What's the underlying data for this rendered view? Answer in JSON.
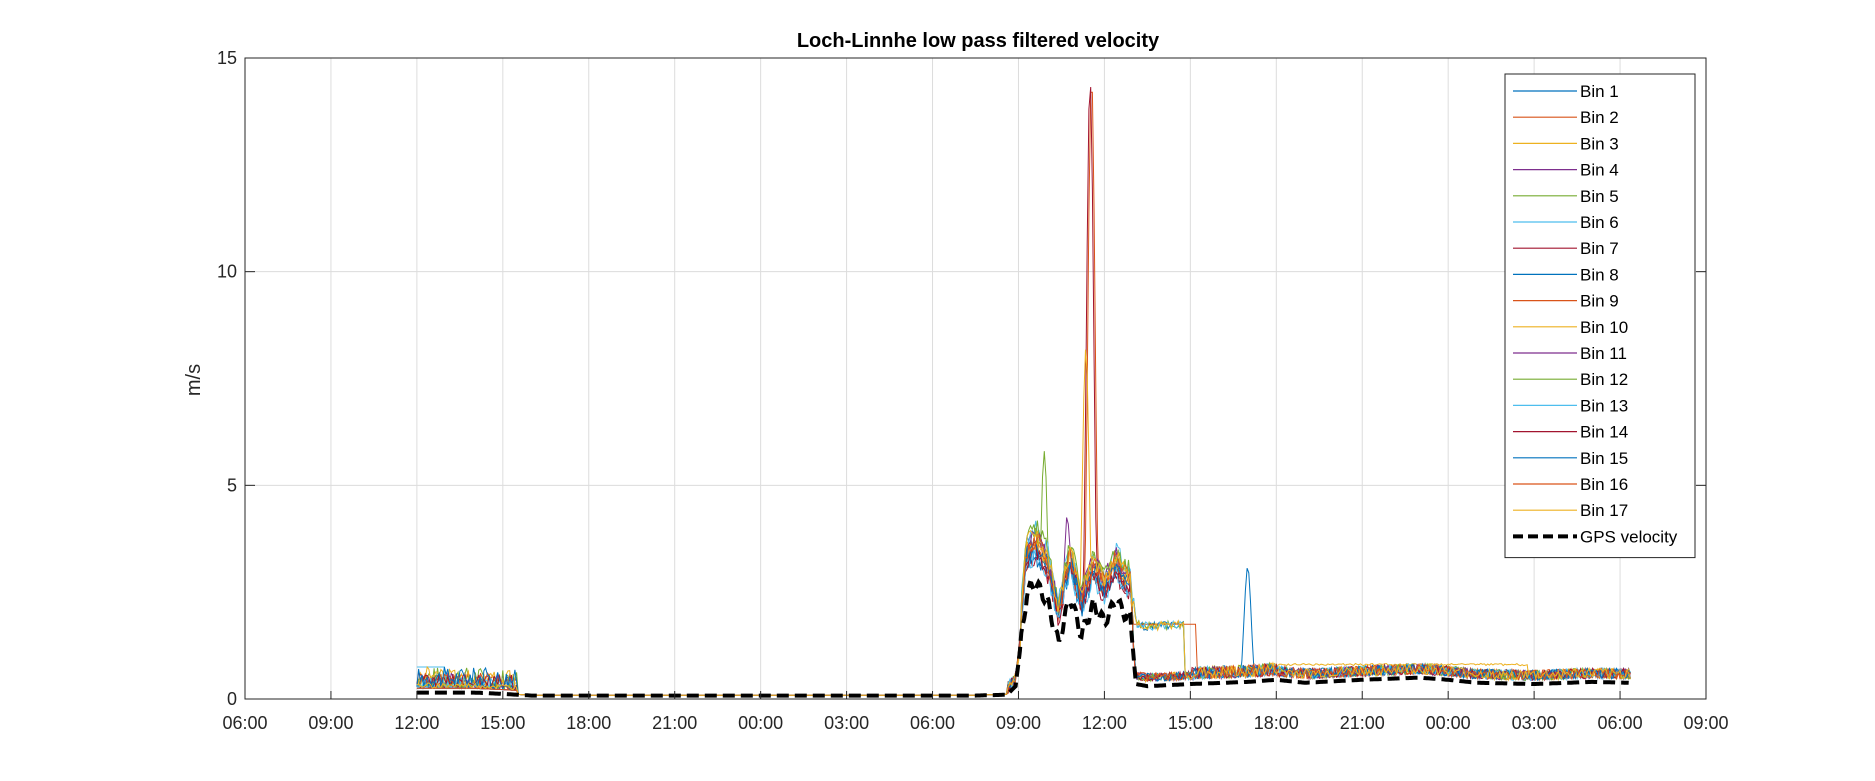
{
  "chart_data": {
    "type": "line",
    "title": "Loch-Linnhe low pass filtered velocity",
    "xlabel": "",
    "ylabel": "m/s",
    "ylim": [
      0,
      15
    ],
    "yticks": [
      0,
      5,
      10,
      15
    ],
    "xlim_hours": [
      0,
      51
    ],
    "xticks": [
      {
        "h": 0,
        "label": "06:00"
      },
      {
        "h": 3,
        "label": "09:00"
      },
      {
        "h": 6,
        "label": "12:00"
      },
      {
        "h": 9,
        "label": "15:00"
      },
      {
        "h": 12,
        "label": "18:00"
      },
      {
        "h": 15,
        "label": "21:00"
      },
      {
        "h": 18,
        "label": "00:00"
      },
      {
        "h": 21,
        "label": "03:00"
      },
      {
        "h": 24,
        "label": "06:00"
      },
      {
        "h": 27,
        "label": "09:00"
      },
      {
        "h": 30,
        "label": "12:00"
      },
      {
        "h": 33,
        "label": "15:00"
      },
      {
        "h": 36,
        "label": "18:00"
      },
      {
        "h": 39,
        "label": "21:00"
      },
      {
        "h": 42,
        "label": "00:00"
      },
      {
        "h": 45,
        "label": "03:00"
      },
      {
        "h": 48,
        "label": "06:00"
      },
      {
        "h": 51,
        "label": "09:00"
      }
    ],
    "grid": true,
    "legend_position": "top-right",
    "series": [
      {
        "name": "Bin 1",
        "color": "#0072BD"
      },
      {
        "name": "Bin 2",
        "color": "#D95319"
      },
      {
        "name": "Bin 3",
        "color": "#EDB120"
      },
      {
        "name": "Bin 4",
        "color": "#7E2F8E"
      },
      {
        "name": "Bin 5",
        "color": "#77AC30"
      },
      {
        "name": "Bin 6",
        "color": "#4DBEEE"
      },
      {
        "name": "Bin 7",
        "color": "#A2142F"
      },
      {
        "name": "Bin 8",
        "color": "#0072BD"
      },
      {
        "name": "Bin 9",
        "color": "#D95319"
      },
      {
        "name": "Bin 10",
        "color": "#EDB120"
      },
      {
        "name": "Bin 11",
        "color": "#7E2F8E"
      },
      {
        "name": "Bin 12",
        "color": "#77AC30"
      },
      {
        "name": "Bin 13",
        "color": "#4DBEEE"
      },
      {
        "name": "Bin 14",
        "color": "#A2142F"
      },
      {
        "name": "Bin 15",
        "color": "#0072BD"
      },
      {
        "name": "Bin 16",
        "color": "#D95319"
      },
      {
        "name": "Bin 17",
        "color": "#EDB120"
      },
      {
        "name": "GPS velocity",
        "color": "#000000",
        "dashed": true,
        "points": [
          [
            6.0,
            0.15
          ],
          [
            7.0,
            0.15
          ],
          [
            8.0,
            0.15
          ],
          [
            9.0,
            0.12
          ],
          [
            10.0,
            0.08
          ],
          [
            12,
            0.08
          ],
          [
            15,
            0.08
          ],
          [
            18,
            0.08
          ],
          [
            21,
            0.08
          ],
          [
            24,
            0.08
          ],
          [
            25.5,
            0.08
          ],
          [
            26.6,
            0.1
          ],
          [
            26.9,
            0.3
          ],
          [
            27.3,
            2.5
          ],
          [
            27.6,
            2.7
          ],
          [
            28.0,
            2.3
          ],
          [
            28.4,
            1.3
          ],
          [
            28.8,
            2.4
          ],
          [
            29.2,
            1.5
          ],
          [
            29.6,
            2.2
          ],
          [
            30.0,
            1.8
          ],
          [
            30.4,
            2.3
          ],
          [
            30.7,
            2.0
          ],
          [
            30.9,
            1.9
          ],
          [
            31.1,
            0.35
          ],
          [
            31.5,
            0.3
          ],
          [
            33,
            0.35
          ],
          [
            35,
            0.4
          ],
          [
            36,
            0.45
          ],
          [
            37,
            0.38
          ],
          [
            39,
            0.45
          ],
          [
            41,
            0.5
          ],
          [
            42,
            0.45
          ],
          [
            43,
            0.38
          ],
          [
            45,
            0.35
          ],
          [
            47,
            0.4
          ],
          [
            48.3,
            0.38
          ]
        ]
      }
    ],
    "peaks": [
      {
        "series": "Bin 4",
        "hour": 28.7,
        "value": 4.3
      },
      {
        "series": "Bin 5",
        "hour": 27.9,
        "value": 5.8
      },
      {
        "series": "Bin 7",
        "hour": 29.5,
        "value": 14.5
      },
      {
        "series": "Bin 10",
        "hour": 29.35,
        "value": 8.2
      },
      {
        "series": "Bin 1",
        "hour": 35.0,
        "value": 3.1
      },
      {
        "series": "Bin 2",
        "hour": 29.55,
        "value": 14.6
      }
    ]
  }
}
